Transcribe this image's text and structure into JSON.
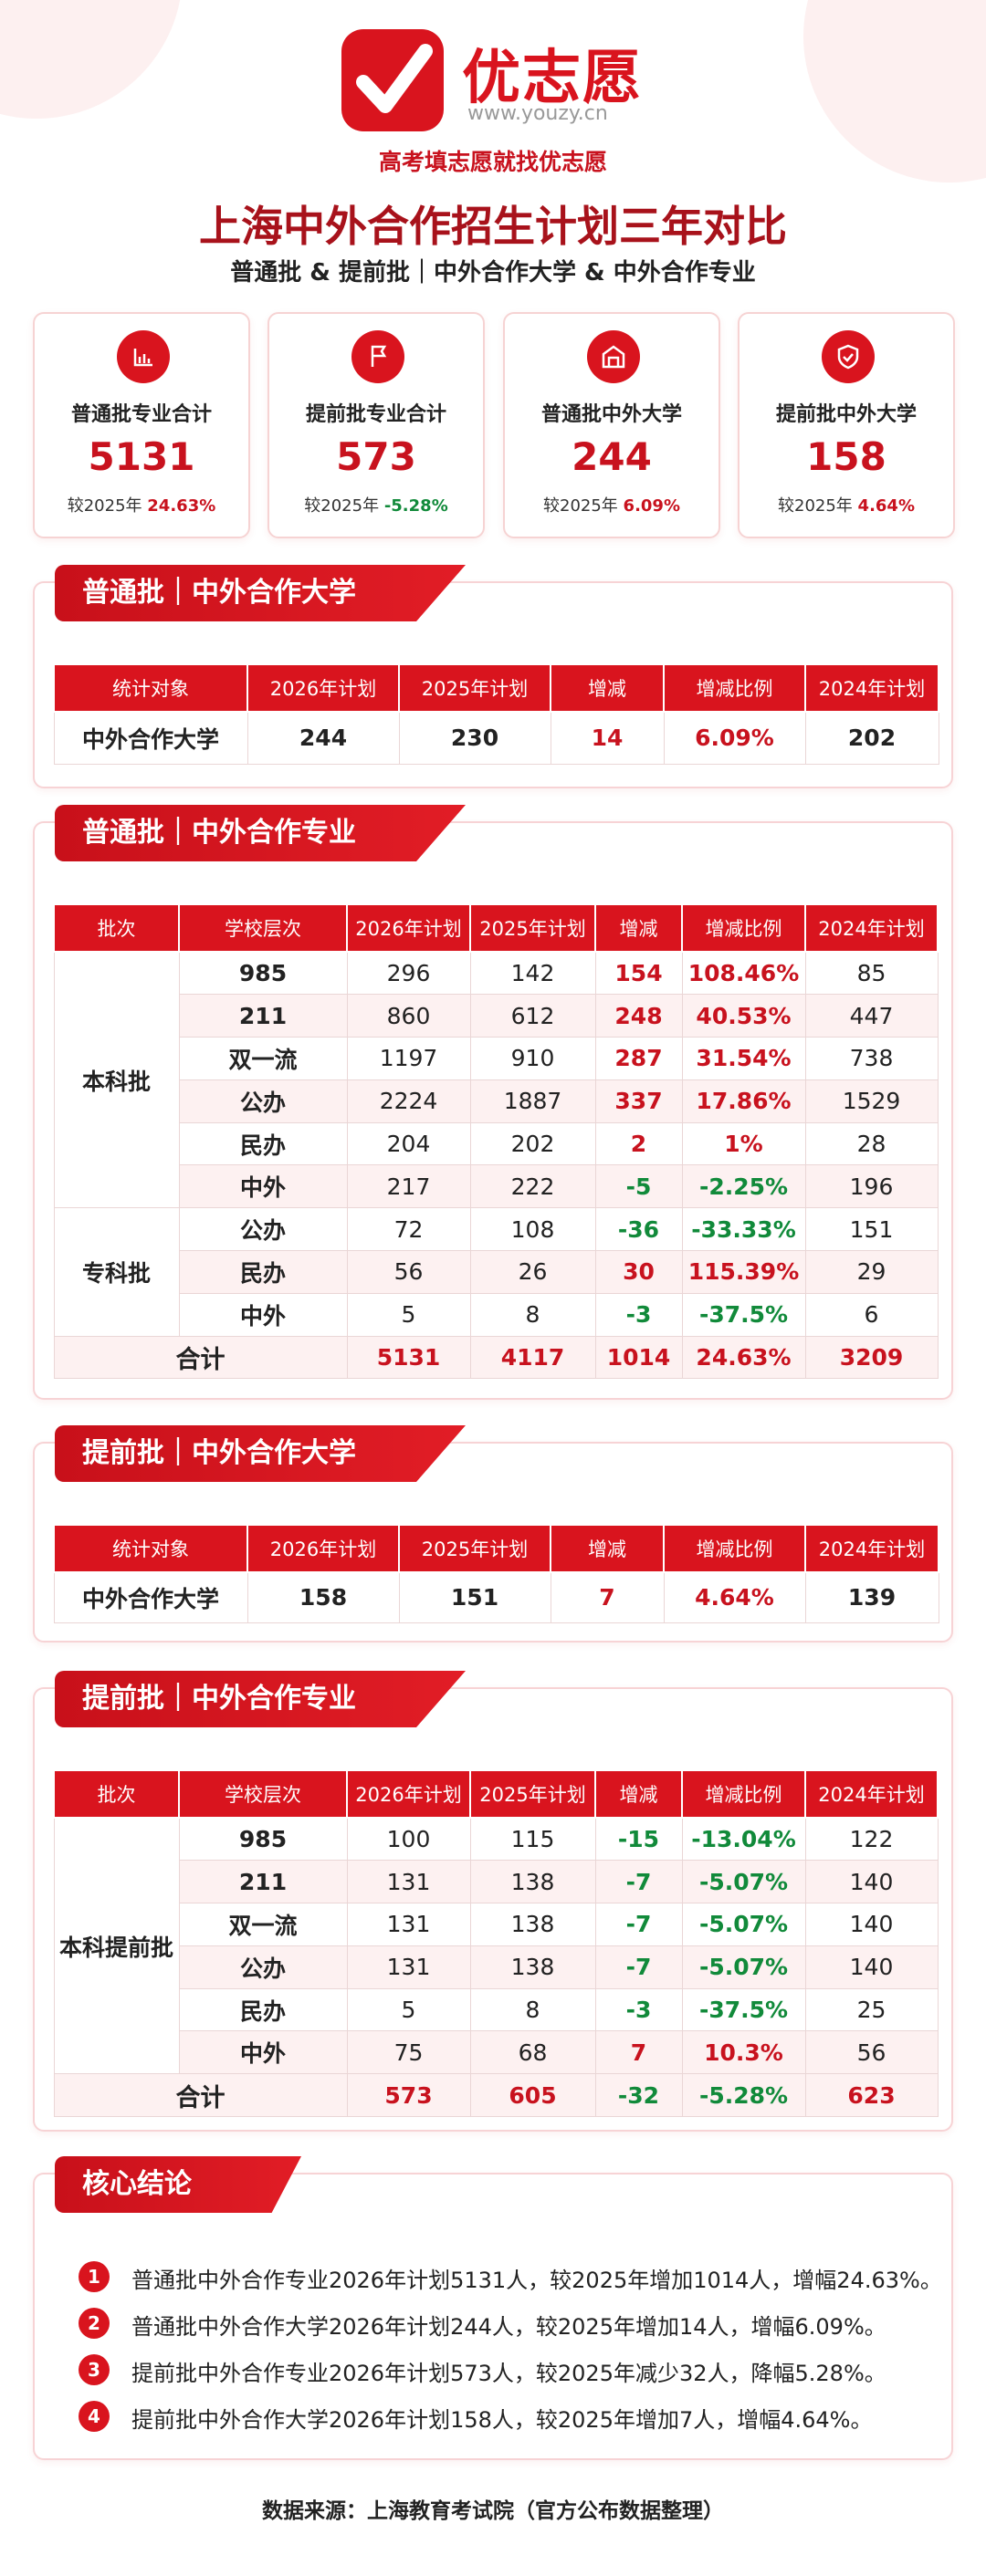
{
  "header": {
    "brand": "优志愿",
    "url": "www.youzy.cn",
    "slogan": "高考填志愿就找优志愿"
  },
  "title": "上海中外合作招生计划三年对比",
  "subtitle": "普通批 & 提前批｜中外合作大学 & 中外合作专业",
  "cards": [
    {
      "label": "普通批专业合计",
      "value": "5131",
      "compare": "较2025年",
      "change": "24.63%"
    },
    {
      "label": "提前批专业合计",
      "value": "573",
      "compare": "较2025年",
      "change": "-5.28%"
    },
    {
      "label": "普通批中外大学",
      "value": "244",
      "compare": "较2025年",
      "change": "6.09%"
    },
    {
      "label": "提前批中外大学",
      "value": "158",
      "compare": "较2025年",
      "change": "4.64%"
    }
  ],
  "sections": [
    {
      "title": "普通批｜中外合作大学",
      "headers": [
        "统计对象",
        "2026年计划",
        "2025年计划",
        "增减",
        "增减比例",
        "2024年计划"
      ],
      "rows": [
        [
          "中外合作大学",
          "244",
          "230",
          "14",
          "6.09%",
          "202"
        ]
      ]
    },
    {
      "title": "普通批｜中外合作专业",
      "headers": [
        "批次",
        "学校层次",
        "2026年计划",
        "2025年计划",
        "增减",
        "增减比例",
        "2024年计划"
      ],
      "groups": [
        {
          "name": "本科批",
          "rows": [
            [
              "985",
              "296",
              "142",
              "154",
              "108.46%",
              "85"
            ],
            [
              "211",
              "860",
              "612",
              "248",
              "40.53%",
              "447"
            ],
            [
              "双一流",
              "1197",
              "910",
              "287",
              "31.54%",
              "738"
            ],
            [
              "公办",
              "2224",
              "1887",
              "337",
              "17.86%",
              "1529"
            ],
            [
              "民办",
              "204",
              "202",
              "2",
              "1%",
              "28"
            ],
            [
              "中外",
              "217",
              "222",
              "-5",
              "-2.25%",
              "196"
            ]
          ]
        },
        {
          "name": "专科批",
          "rows": [
            [
              "公办",
              "72",
              "108",
              "-36",
              "-33.33%",
              "151"
            ],
            [
              "民办",
              "56",
              "26",
              "30",
              "115.39%",
              "29"
            ],
            [
              "中外",
              "5",
              "8",
              "-3",
              "-37.5%",
              "6"
            ]
          ]
        }
      ],
      "total": [
        "合计",
        "5131",
        "4117",
        "1014",
        "24.63%",
        "3209"
      ]
    },
    {
      "title": "提前批｜中外合作大学",
      "headers": [
        "统计对象",
        "2026年计划",
        "2025年计划",
        "增减",
        "增减比例",
        "2024年计划"
      ],
      "rows": [
        [
          "中外合作大学",
          "158",
          "151",
          "7",
          "4.64%",
          "139"
        ]
      ]
    },
    {
      "title": "提前批｜中外合作专业",
      "headers": [
        "批次",
        "学校层次",
        "2026年计划",
        "2025年计划",
        "增减",
        "增减比例",
        "2024年计划"
      ],
      "groups": [
        {
          "name": "本科提前批",
          "rows": [
            [
              "985",
              "100",
              "115",
              "-15",
              "-13.04%",
              "122"
            ],
            [
              "211",
              "131",
              "138",
              "-7",
              "-5.07%",
              "140"
            ],
            [
              "双一流",
              "131",
              "138",
              "-7",
              "-5.07%",
              "140"
            ],
            [
              "公办",
              "131",
              "138",
              "-7",
              "-5.07%",
              "140"
            ],
            [
              "民办",
              "5",
              "8",
              "-3",
              "-37.5%",
              "25"
            ],
            [
              "中外",
              "75",
              "68",
              "7",
              "10.3%",
              "56"
            ]
          ]
        }
      ],
      "total": [
        "合计",
        "573",
        "605",
        "-32",
        "-5.28%",
        "623"
      ]
    }
  ],
  "conclusion": {
    "title": "核心结论",
    "items": [
      {
        "num": "1",
        "text": "普通批中外合作专业2026年计划5131人，较2025年增加1014人，增幅24.63%。"
      },
      {
        "num": "2",
        "text": "普通批中外合作大学2026年计划244人，较2025年增加14人，增幅6.09%。"
      },
      {
        "num": "3",
        "text": "提前批中外合作专业2026年计划573人，较2025年减少32人，降幅5.28%。"
      },
      {
        "num": "4",
        "text": "提前批中外合作大学2026年计划158人，较2025年增加7人，增幅4.64%。"
      }
    ]
  },
  "source": "数据来源：上海教育考试院（官方公布数据整理）"
}
